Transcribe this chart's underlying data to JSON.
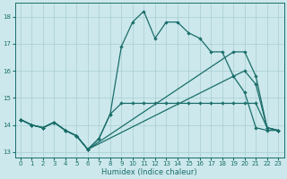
{
  "xlabel": "Humidex (Indice chaleur)",
  "bg_color": "#cce8ec",
  "grid_color": "#a8cdd2",
  "line_color": "#1a6e6a",
  "xlim": [
    -0.5,
    23.5
  ],
  "ylim": [
    12.8,
    18.5
  ],
  "xticks": [
    0,
    1,
    2,
    3,
    4,
    5,
    6,
    7,
    8,
    9,
    10,
    11,
    12,
    13,
    14,
    15,
    16,
    17,
    18,
    19,
    20,
    21,
    22,
    23
  ],
  "yticks": [
    13,
    14,
    15,
    16,
    17,
    18
  ],
  "line1_x": [
    0,
    1,
    2,
    3,
    4,
    5,
    6,
    7,
    8,
    9,
    10,
    11,
    12,
    13,
    14,
    15,
    16,
    17,
    18,
    19,
    20,
    21,
    22,
    23
  ],
  "line1_y": [
    14.2,
    14.0,
    13.9,
    14.1,
    13.8,
    13.6,
    13.1,
    13.5,
    14.4,
    16.9,
    17.8,
    18.2,
    17.2,
    17.8,
    17.8,
    17.4,
    17.2,
    16.7,
    16.7,
    15.8,
    15.2,
    13.9,
    13.8,
    13.8
  ],
  "line2_x": [
    0,
    1,
    2,
    3,
    4,
    5,
    6,
    19,
    20,
    21,
    22,
    23
  ],
  "line2_y": [
    14.2,
    14.0,
    13.9,
    14.1,
    13.8,
    13.6,
    13.1,
    16.7,
    16.7,
    15.8,
    13.9,
    13.8
  ],
  "line3_x": [
    0,
    1,
    2,
    3,
    4,
    5,
    6,
    19,
    20,
    21,
    22,
    23
  ],
  "line3_y": [
    14.2,
    14.0,
    13.9,
    14.1,
    13.8,
    13.6,
    13.1,
    15.8,
    16.0,
    15.5,
    13.9,
    13.8
  ],
  "line4_x": [
    0,
    1,
    2,
    3,
    4,
    5,
    6,
    7,
    8,
    9,
    10,
    11,
    12,
    13,
    14,
    15,
    16,
    17,
    18,
    19,
    20,
    21,
    22,
    23
  ],
  "line4_y": [
    14.2,
    14.0,
    13.9,
    14.1,
    13.8,
    13.6,
    13.1,
    13.5,
    14.4,
    14.8,
    14.8,
    14.8,
    14.8,
    14.8,
    14.8,
    14.8,
    14.8,
    14.8,
    14.8,
    14.8,
    14.8,
    14.8,
    13.9,
    13.8
  ]
}
